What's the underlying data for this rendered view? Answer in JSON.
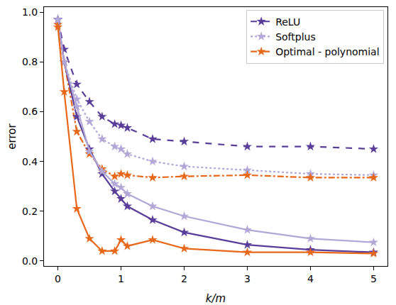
{
  "chart_data": {
    "type": "line",
    "x_label": "k/m",
    "y_label": "error",
    "x": [
      0,
      0.1,
      0.3,
      0.5,
      0.7,
      0.9,
      1.0,
      1.1,
      1.5,
      2,
      3,
      4,
      5
    ],
    "xlim": [
      -0.22,
      5.22
    ],
    "xticks": [
      0,
      1,
      2,
      3,
      4,
      5
    ],
    "ylim": [
      -0.02,
      1.02
    ],
    "yticks": [
      {
        "value": 0,
        "label": "0.0"
      },
      {
        "value": 0.2,
        "label": "0.2"
      },
      {
        "value": 0.4,
        "label": "0.4"
      },
      {
        "value": 0.6,
        "label": "0.6"
      },
      {
        "value": 0.8,
        "label": "0.8"
      },
      {
        "value": 1.0,
        "label": "1.0"
      }
    ],
    "grid": false,
    "legend": "upper right",
    "marker": "star",
    "series": [
      {
        "name": "ReLU",
        "color": "#5a3d99",
        "line_style": "dash",
        "values": [
          0.97,
          0.85,
          0.71,
          0.64,
          0.58,
          0.55,
          0.545,
          0.535,
          0.49,
          0.48,
          0.46,
          0.46,
          0.45
        ]
      },
      {
        "name": "Softplus",
        "color": "#b2a8d8",
        "line_style": "dot",
        "values": [
          0.97,
          0.8,
          0.65,
          0.56,
          0.49,
          0.46,
          0.45,
          0.43,
          0.4,
          0.38,
          0.365,
          0.35,
          0.345
        ]
      },
      {
        "name": "Optimal - polynomial",
        "color": "#e8681a",
        "line_style": "dashdot",
        "values": [
          0.95,
          0.8,
          0.52,
          0.43,
          0.37,
          0.34,
          0.35,
          0.345,
          0.335,
          0.34,
          0.345,
          0.335,
          0.335
        ]
      },
      {
        "color": "#5a3d99",
        "line_style": "solid",
        "values": [
          0.97,
          0.8,
          0.58,
          0.45,
          0.35,
          0.28,
          0.25,
          0.22,
          0.165,
          0.115,
          0.065,
          0.045,
          0.035
        ]
      },
      {
        "color": "#b2a8d8",
        "line_style": "solid",
        "values": [
          0.97,
          0.8,
          0.62,
          0.44,
          0.36,
          0.31,
          0.295,
          0.27,
          0.22,
          0.18,
          0.125,
          0.09,
          0.075
        ]
      },
      {
        "color": "#e8681a",
        "line_style": "solid",
        "values": [
          0.94,
          0.68,
          0.21,
          0.09,
          0.04,
          0.04,
          0.085,
          0.06,
          0.085,
          0.05,
          0.035,
          0.035,
          0.03
        ]
      }
    ]
  }
}
